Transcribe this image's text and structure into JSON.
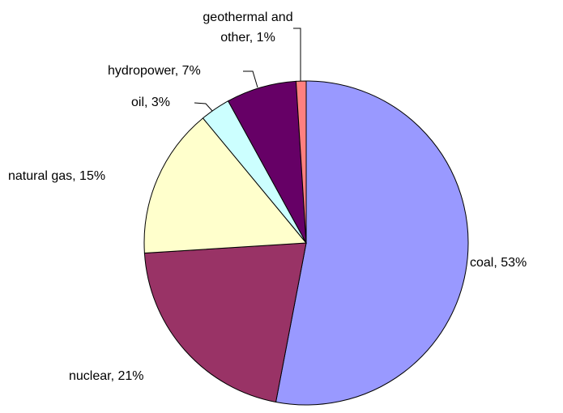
{
  "chart_data": {
    "type": "pie",
    "values": [
      53,
      21,
      15,
      3,
      7,
      1
    ],
    "value_labels": [
      "coal, 53%",
      "nuclear, 21%",
      "natural gas, 15%",
      "oil, 3%",
      "hydropower, 7%",
      [
        "geothermal and",
        "other, 1%"
      ]
    ],
    "colors": [
      "#9999ff",
      "#993366",
      "#ffffcc",
      "#ccffff",
      "#660066",
      "#ff8080"
    ]
  }
}
